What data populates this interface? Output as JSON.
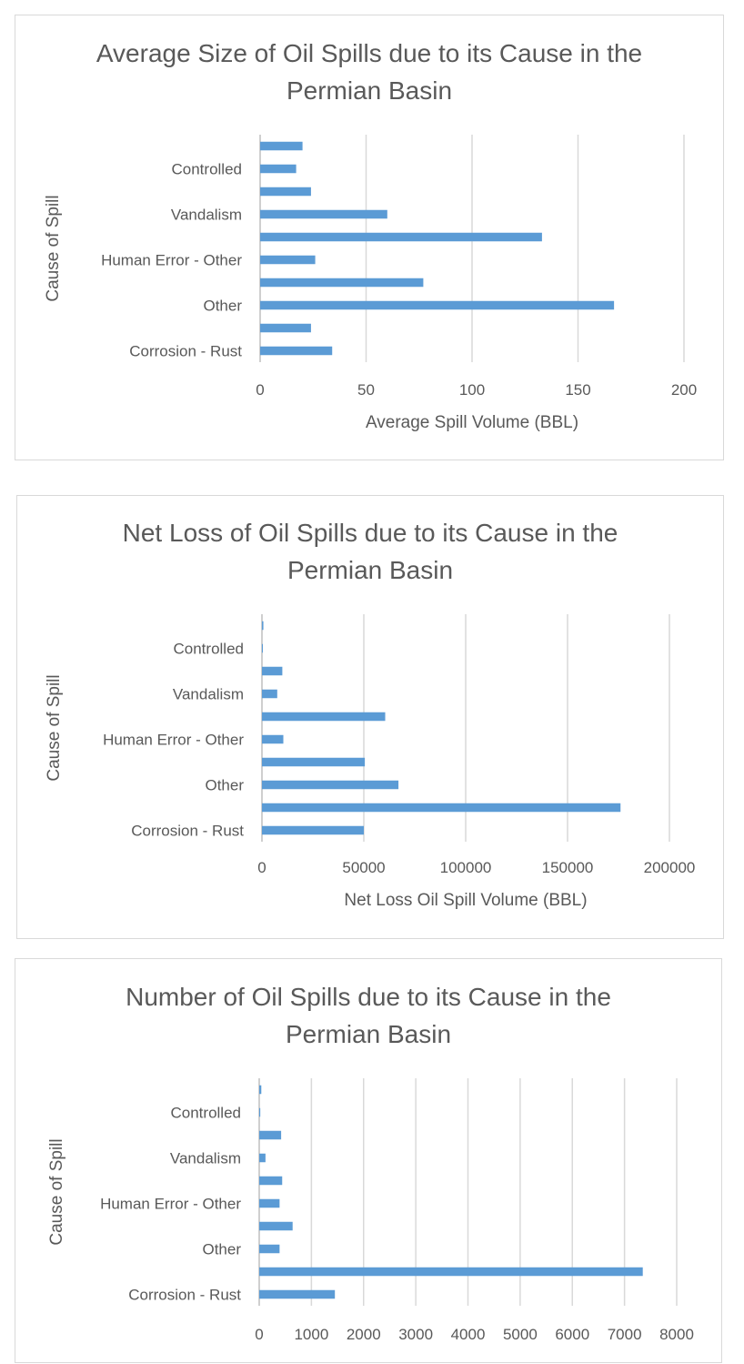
{
  "chart_data": [
    {
      "type": "bar",
      "orientation": "horizontal",
      "title": "Average Size of Oil Spills due to its Cause in the Permian Basin",
      "xlabel": "Average Spill Volume (BBL)",
      "ylabel": "Cause of Spill",
      "categories": [
        "Corrosion - Rust",
        "",
        "Other",
        "",
        "Human Error - Other",
        "",
        "Vandalism",
        "",
        "Controlled",
        ""
      ],
      "values": [
        34,
        24,
        167,
        77,
        26,
        133,
        60,
        24,
        17,
        20
      ],
      "xlim": [
        0,
        200
      ],
      "xticks": [
        0,
        50,
        100,
        150,
        200
      ],
      "grid": true,
      "legend": "none"
    },
    {
      "type": "bar",
      "orientation": "horizontal",
      "title": "Net Loss of Oil Spills due to its Cause in the Permian Basin",
      "xlabel": "Net Loss Oil Spill Volume (BBL)",
      "ylabel": "Cause of Spill",
      "categories": [
        "Corrosion - Rust",
        "",
        "Other",
        "",
        "Human Error - Other",
        "",
        "Vandalism",
        "",
        "Controlled",
        ""
      ],
      "values": [
        50000,
        176000,
        67000,
        50500,
        10500,
        60500,
        7500,
        10000,
        200,
        700
      ],
      "xlim": [
        0,
        200000
      ],
      "xticks": [
        0,
        50000,
        100000,
        150000,
        200000
      ],
      "grid": true,
      "legend": "none"
    },
    {
      "type": "bar",
      "orientation": "horizontal",
      "title": "Number of Oil Spills due to its Cause in the Permian Basin",
      "xlabel": "",
      "ylabel": "Cause of Spill",
      "categories": [
        "Corrosion - Rust",
        "",
        "Other",
        "",
        "Human Error - Other",
        "",
        "Vandalism",
        "",
        "Controlled",
        ""
      ],
      "values": [
        1450,
        7350,
        390,
        640,
        390,
        440,
        120,
        420,
        20,
        40
      ],
      "xlim": [
        0,
        8000
      ],
      "xticks": [
        0,
        1000,
        2000,
        3000,
        4000,
        5000,
        6000,
        7000,
        8000
      ],
      "grid": true,
      "legend": "none"
    }
  ]
}
